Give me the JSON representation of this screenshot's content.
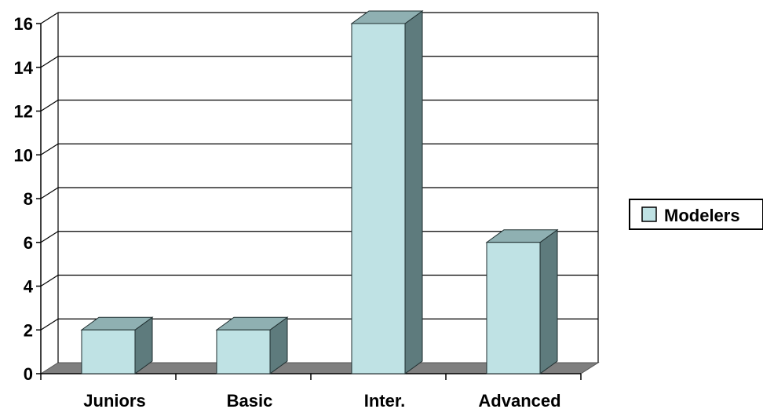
{
  "chart_data": {
    "type": "bar",
    "categories": [
      "Juniors",
      "Basic",
      "Inter.",
      "Advanced"
    ],
    "series": [
      {
        "name": "Modelers",
        "values": [
          2,
          2,
          16,
          6
        ]
      }
    ],
    "xlabel": "",
    "ylabel": "",
    "ylim": [
      0,
      16
    ],
    "y_ticks": [
      0,
      2,
      4,
      6,
      8,
      10,
      12,
      14,
      16
    ],
    "grid": true,
    "legend_position": "right",
    "style": "3d-column",
    "colors": {
      "bar_front": "#bfe2e4",
      "bar_top": "#8fb0b2",
      "bar_side": "#5e7b7d",
      "floor": "#7f7f7f",
      "grid": "#000000"
    }
  }
}
